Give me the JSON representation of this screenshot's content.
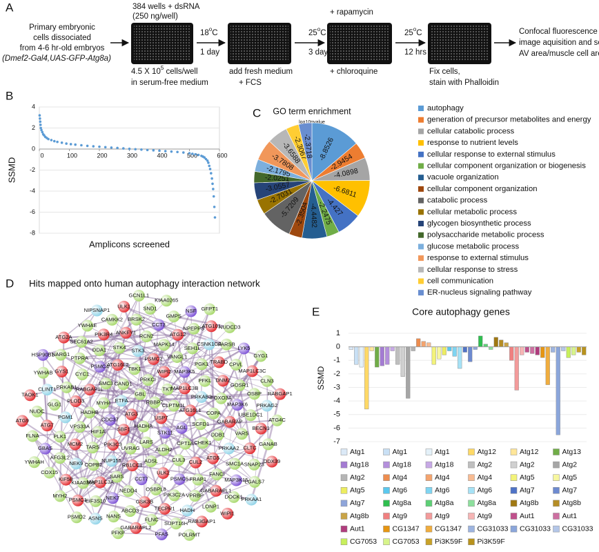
{
  "panel_a": {
    "panel_label": "A",
    "input": [
      "Primary embryonic",
      "cells dissociated",
      "from 4-6 hr-old embryos",
      "(Dmef2-Gal4,UAS-GFP-Atg8a)"
    ],
    "plate_1_top": [
      "384 wells + dsRNA",
      "(250 ng/well)"
    ],
    "plate_1_bottom": [
      [
        "4.5 X 10",
        "5",
        " cells/well"
      ],
      "in serum-free medium"
    ],
    "step_1": {
      "temperature": [
        "18",
        "o",
        "C"
      ],
      "duration": "1 day"
    },
    "plate_2_bottom": [
      "add fresh medium",
      "+ FCS"
    ],
    "step_2": {
      "temperature": [
        "25",
        "o",
        "C"
      ],
      "duration": "3 days"
    },
    "plate_3_top": "+ rapamycin",
    "plate_3_bottom": "+ chloroquine",
    "step_3": {
      "temperature": [
        "25",
        "o",
        "C"
      ],
      "duration": "12 hrs"
    },
    "plate_4_bottom": [
      "Fix cells,",
      "stain with Phalloidin"
    ],
    "output": [
      "Confocal fluorescence",
      "image aquisition and score",
      "AV area/muscle cell area"
    ]
  },
  "chart_data": [
    {
      "panel_label": "B",
      "type": "scatter",
      "x_label": "Amplicons screened",
      "y_label": "SSMD",
      "x": [
        1,
        2,
        3,
        4,
        5,
        7,
        10,
        13,
        16,
        20,
        25,
        30,
        40,
        50,
        60,
        75,
        90,
        105,
        120,
        140,
        160,
        180,
        200,
        220,
        240,
        260,
        280,
        300,
        320,
        340,
        360,
        380,
        400,
        420,
        440,
        460,
        480,
        500,
        510,
        520,
        530,
        540,
        545,
        550,
        555,
        560,
        563,
        566,
        569,
        572,
        575,
        577,
        579,
        581,
        583,
        585
      ],
      "values": [
        3.2,
        2.9,
        2.6,
        2.3,
        2.0,
        1.8,
        1.6,
        1.4,
        1.3,
        1.15,
        1.05,
        0.95,
        0.85,
        0.75,
        0.68,
        0.6,
        0.52,
        0.46,
        0.42,
        0.36,
        0.3,
        0.26,
        0.22,
        0.18,
        0.14,
        0.1,
        0.06,
        0.02,
        -0.02,
        -0.05,
        -0.09,
        -0.12,
        -0.16,
        -0.2,
        -0.24,
        -0.28,
        -0.33,
        -0.4,
        -0.45,
        -0.5,
        -0.56,
        -0.65,
        -0.72,
        -0.8,
        -0.95,
        -1.1,
        -1.3,
        -1.6,
        -1.9,
        -2.3,
        -2.8,
        -3.3,
        -3.8,
        -4.5,
        -5.5,
        -6.5
      ],
      "color": "#5b9bd5",
      "xlim": [
        0,
        600
      ],
      "ylim": [
        -8,
        4
      ],
      "xticks": [
        0,
        100,
        200,
        300,
        400,
        500,
        600
      ],
      "yticks": [
        4,
        2,
        0,
        -2,
        -4,
        -6,
        -8
      ],
      "grid": true
    },
    {
      "panel_label": "C",
      "type": "pie",
      "title": "GO term enrichment",
      "subtitle": "log10pvalue",
      "categories": [
        "autophagy",
        "generation of precursor metabolites and energy",
        "cellular catabolic process",
        "response to nutrient levels",
        "cellular response to external stimulus",
        "cellular component organization or biogenesis",
        "vacuole organization",
        "cellular component organization",
        "catabolic process",
        "cellular metabolic process",
        "glycogen biosynthetic process",
        "polysaccharide metabolic process",
        "glucose metabolic process",
        "response to external stimulus",
        "cellular response to stress",
        "cell communication",
        "ER-nucleus signaling pathway"
      ],
      "values": [
        -8.8526,
        -2.9454,
        -4.0898,
        -6.6811,
        -4.427,
        -2.2475,
        -4.4482,
        -2.3504,
        -5.7209,
        -2.7031,
        -3.0557,
        -2.0251,
        -2.1795,
        -3.7808,
        -3.6588,
        -2.3067,
        -2.3718
      ],
      "colors": [
        "#5b9bd5",
        "#ed7d31",
        "#a5a5a5",
        "#ffc000",
        "#4472c4",
        "#70ad47",
        "#255e91",
        "#9e480e",
        "#636363",
        "#997300",
        "#264478",
        "#43682b",
        "#7cafdd",
        "#f1975a",
        "#b7b7b7",
        "#ffcd33",
        "#698ed0"
      ],
      "legend": "right"
    },
    {
      "panel_label": "E",
      "type": "bar",
      "title": "Core autophagy genes",
      "y_label": "SSMD",
      "ylim": [
        -7,
        1
      ],
      "yticks": [
        1,
        0,
        -1,
        -2,
        -3,
        -4,
        -5,
        -6,
        -7
      ],
      "grid": true,
      "legend": "bottom",
      "series": [
        {
          "name": "Atg1",
          "color": "#dbe9f7",
          "values": [
            -0.2
          ]
        },
        {
          "name": "Atg1",
          "color": "#c9e0f5",
          "values": [
            -1.3
          ]
        },
        {
          "name": "Atg1",
          "color": "#e4f1f9",
          "values": [
            -1.5
          ]
        },
        {
          "name": "Atg12",
          "color": "#ffd966",
          "values": [
            -4.6
          ]
        },
        {
          "name": "Atg12",
          "color": "#ffe699",
          "values": [
            -0.3
          ]
        },
        {
          "name": "Atg13",
          "color": "#70ad47",
          "values": [
            -1.5
          ]
        },
        {
          "name": "Atg18",
          "color": "#a47bd3",
          "values": [
            -1.4
          ]
        },
        {
          "name": "Atg18",
          "color": "#b48fdc",
          "values": [
            -1.3
          ]
        },
        {
          "name": "Atg18",
          "color": "#c7a9e6",
          "values": [
            -0.3
          ]
        },
        {
          "name": "Atg2",
          "color": "#bfbfbf",
          "values": [
            -1.3
          ]
        },
        {
          "name": "Atg2",
          "color": "#d0d0d0",
          "values": [
            -2.2
          ]
        },
        {
          "name": "Atg2",
          "color": "#a6a6a6",
          "values": [
            -3.8
          ]
        },
        {
          "name": "Atg2",
          "color": "#b5b5b5",
          "values": [
            -0.3
          ]
        },
        {
          "name": "Atg4",
          "color": "#ed8d4f",
          "values": [
            0.6
          ]
        },
        {
          "name": "Atg4",
          "color": "#f4a46e",
          "values": [
            0.4
          ]
        },
        {
          "name": "Atg4",
          "color": "#f8bb92",
          "values": [
            0.3
          ]
        },
        {
          "name": "Atg5",
          "color": "#f3f37a",
          "values": [
            -1.3
          ]
        },
        {
          "name": "Atg5",
          "color": "#f7f7a0",
          "values": [
            -0.9
          ]
        },
        {
          "name": "Atg5",
          "color": "#eded60",
          "values": [
            -0.6
          ]
        },
        {
          "name": "Atg6",
          "color": "#5bc8ee",
          "values": [
            -0.3
          ]
        },
        {
          "name": "Atg6",
          "color": "#7fd5f2",
          "values": [
            -0.7
          ]
        },
        {
          "name": "Atg6",
          "color": "#a6e2f6",
          "values": [
            -1.6
          ]
        },
        {
          "name": "Atg7",
          "color": "#4f73c6",
          "values": [
            -0.4
          ]
        },
        {
          "name": "Atg7",
          "color": "#6d8ad0",
          "values": [
            -1.1
          ]
        },
        {
          "name": "Atg7",
          "color": "#8ea5da",
          "values": [
            -0.2
          ]
        },
        {
          "name": "Atg8a",
          "color": "#2fbf4f",
          "values": [
            0.8
          ]
        },
        {
          "name": "Atg8a",
          "color": "#5dd075",
          "values": [
            0.2
          ]
        },
        {
          "name": "Atg8a",
          "color": "#8de09d",
          "values": [
            -0.2
          ]
        },
        {
          "name": "Atg8b",
          "color": "#a07812",
          "values": [
            0.7
          ]
        },
        {
          "name": "Atg8b",
          "color": "#b58d25",
          "values": [
            0.5
          ]
        },
        {
          "name": "Atg8b",
          "color": "#c9a447",
          "values": [
            0.3
          ]
        },
        {
          "name": "Atg9",
          "color": "#f08080",
          "values": [
            -1.0
          ]
        },
        {
          "name": "Atg9",
          "color": "#f39b9b",
          "values": [
            -3.2
          ]
        },
        {
          "name": "Atg9",
          "color": "#f6b5b5",
          "values": [
            -0.6
          ]
        },
        {
          "name": "Aut1",
          "color": "#c0508c",
          "values": [
            -0.4
          ]
        },
        {
          "name": "Aut1",
          "color": "#cd6fa1",
          "values": [
            -0.5
          ]
        },
        {
          "name": "Aut1",
          "color": "#b03c7d",
          "values": [
            -0.6
          ]
        },
        {
          "name": "CG1347",
          "color": "#e69512",
          "values": [
            -0.8
          ]
        },
        {
          "name": "CG1347",
          "color": "#f0ad3e",
          "values": [
            -2.8
          ]
        },
        {
          "name": "CG31033",
          "color": "#9db4e0",
          "values": [
            -0.4
          ]
        },
        {
          "name": "CG31033",
          "color": "#8ba6db",
          "values": [
            -6.5
          ]
        },
        {
          "name": "CG31033",
          "color": "#b3c6e8",
          "values": [
            -0.3
          ]
        },
        {
          "name": "CG7053",
          "color": "#c8ef5c",
          "values": [
            -0.8
          ]
        },
        {
          "name": "CG7053",
          "color": "#d7f48a",
          "values": [
            -0.6
          ]
        },
        {
          "name": "Pi3K59F",
          "color": "#c9a227",
          "values": [
            -0.4
          ]
        },
        {
          "name": "Pi3K59F",
          "color": "#b8921c",
          "values": [
            -0.6
          ]
        }
      ]
    }
  ],
  "network": {
    "panel_label": "D",
    "title": "Hits mapped onto human autophagy interaction network",
    "node_groups": [
      {
        "color": "#e3262b",
        "nodes": [
          "USP7",
          "CUL2",
          "GSK3B",
          "KIF5B",
          "TAOK1",
          "WIPI2",
          "DNM2",
          "CLTC",
          "RAB3GAP1",
          "SBF1",
          "RABGAP1L",
          "ANKFY1",
          "ATG101",
          "RABGAP1",
          "ULK2",
          "MAP1LC3A",
          "ATG7",
          "ATG2A",
          "MAP1LC3B",
          "GABARAP",
          "GABARAPL1",
          "GABARAPL2",
          "ATG3",
          "ATG16L2",
          "ATG12",
          "MAP1LC3C",
          "DDX39",
          "RB1CC1",
          "MCM2",
          "GYS1",
          "ULK1",
          "ATG16L1",
          "ATG5",
          "TECPR1",
          "PSMC1",
          "ATG9",
          "PSMC2",
          "TRABD",
          "BECN1",
          "WIPI1",
          "PIK3C3",
          "PLOD3",
          "PIK3R4"
        ]
      },
      {
        "color": "#7b4fd6",
        "nodes": [
          "NSF",
          "AGL",
          "PSMC5",
          "NEK7",
          "GBAS",
          "HSP90B1",
          "MAP3K5",
          "MAP3K6",
          "MAP3K15",
          "PFAS",
          "CDC37",
          "PSMC4",
          "CCT3",
          "LYK5",
          "STK11",
          "CCT7"
        ]
      },
      {
        "color": "#8fd3e8",
        "nodes": [
          "NEK9",
          "CLINT1",
          "NIPSNAP1",
          "PRKAB2",
          "PRKAA2",
          "HADH",
          "ASNS",
          "ETFA",
          "STK3",
          "CSNK1G3",
          "PRKAG2",
          "PRKAA1",
          "NUP155",
          "PGM1"
        ]
      },
      {
        "color": "#a6d86a",
        "nodes": [
          "SEC61A2",
          "KIAA0265",
          "SCFD1",
          "FRAP1",
          "ABCD3",
          "COX15",
          "GBL",
          "VANGL1",
          "GOSR1",
          "SNAP23",
          "POLRMT",
          "HIF1A",
          "CYC1",
          "BRSK2",
          "NUDCD3",
          "CPT1A",
          "OSBPL8",
          "KIAA0368",
          "NUDC",
          "RBBP7",
          "PFKL",
          "VARS",
          "LONP1",
          "PFKP",
          "MYH4",
          "STK4",
          "NPEPPS",
          "CLN3",
          "ALDH2",
          "SARS",
          "PLK1",
          "NARG1",
          "GCN1L1",
          "COPA",
          "FANCI",
          "FLNC",
          "MYH2",
          "CAND1",
          "MAPK14",
          "CPVL",
          "GANAB",
          "LARS",
          "TARS",
          "PRKAB1",
          "CAMKK2",
          "GFPT1",
          "CHEK1",
          "PIK3C2A",
          "EIF3S10",
          "FLNA",
          "PRKCI",
          "PGK1",
          "UBE1DC1",
          "DOCK1",
          "HADHA",
          "HADHB",
          "DDA1",
          "GMPS",
          "GYG1",
          "CUL3",
          "NEDD4",
          "AFG3L2",
          "YWHAB",
          "TKT",
          "FOXO3A",
          "SMC1A",
          "SUPT16H",
          "PSMD2",
          "SMC3",
          "RCN2",
          "FARSB",
          "ATG4C",
          "ADSL",
          "COPB2",
          "GLG1",
          "YWHAE",
          "CLPTM1L",
          "DDB1",
          "VPRBP",
          "NANS",
          "YWHAH",
          "TBK1",
          "SEH1L",
          "OSBP",
          "LGALS7",
          "UVRAG",
          "VPS33A",
          "PTPRA",
          "SND1"
        ]
      }
    ]
  }
}
